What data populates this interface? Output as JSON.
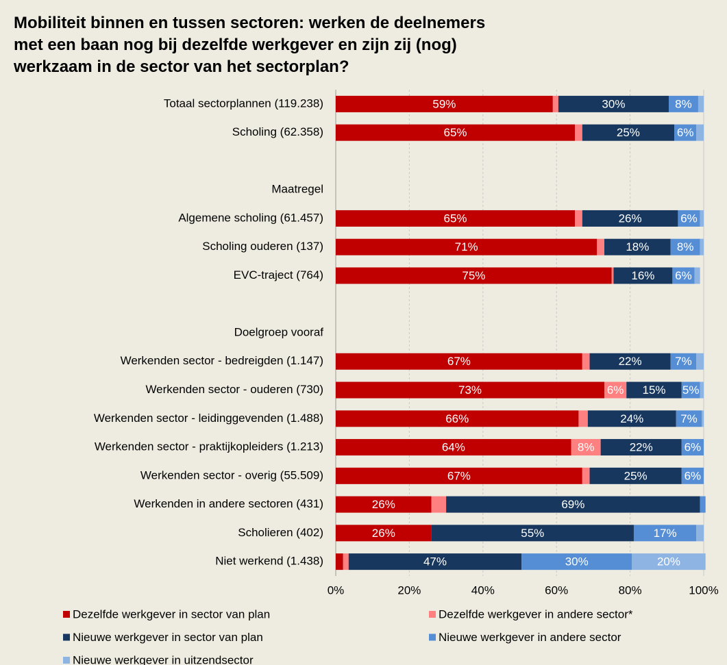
{
  "chart_data": {
    "type": "stacked_bar_horizontal",
    "title": "Mobiliteit binnen en tussen sectoren: werken de deelnemers met een baan nog bij dezelfde werkgever en zijn zij (nog) werkzaam in de sector van het sectorplan?",
    "categories": [
      "Totaal sectorplannen (119.238)",
      "Scholing (62.358)",
      null,
      "Maatregel",
      "Algemene scholing (61.457)",
      "Scholing ouderen (137)",
      "EVC-traject (764)",
      null,
      "Doelgroep vooraf",
      "Werkenden sector - bedreigden (1.147)",
      "Werkenden sector - ouderen (730)",
      "Werkenden sector - leidinggevenden (1.488)",
      "Werkenden sector - praktijkopleiders (1.213)",
      "Werkenden sector - overig (55.509)",
      "Werkenden in andere sectoren (431)",
      "Scholieren (402)",
      "Niet werkend (1.438)"
    ],
    "series": [
      {
        "name": "Dezelfde werkgever in sector van plan",
        "color": "#c00000",
        "values": [
          59,
          65,
          null,
          null,
          65,
          71,
          75,
          null,
          null,
          67,
          73,
          66,
          64,
          67,
          26,
          26,
          2
        ],
        "value_labels": [
          "59%",
          "65%",
          null,
          null,
          "65%",
          "71%",
          "75%",
          null,
          null,
          "67%",
          "73%",
          "66%",
          "64%",
          "67%",
          "26%",
          "26%",
          null
        ]
      },
      {
        "name": "Dezelfde werkgever in andere sector*",
        "color": "#ff8080",
        "values": [
          1.5,
          2,
          null,
          null,
          2,
          2,
          0.5,
          null,
          null,
          2,
          6,
          2.5,
          8,
          2,
          4,
          0,
          1.5
        ],
        "value_labels": [
          null,
          null,
          null,
          null,
          null,
          null,
          null,
          null,
          null,
          null,
          "6%",
          null,
          "8%",
          null,
          null,
          null,
          null
        ]
      },
      {
        "name": "Nieuwe werkgever in sector van plan",
        "color": "#17375e",
        "values": [
          30,
          25,
          null,
          null,
          26,
          18,
          16,
          null,
          null,
          22,
          15,
          24,
          22,
          25,
          69,
          55,
          47
        ],
        "value_labels": [
          "30%",
          "25%",
          null,
          null,
          "26%",
          "18%",
          "16%",
          null,
          null,
          "22%",
          "15%",
          "24%",
          "22%",
          "25%",
          "69%",
          "55%",
          "47%"
        ]
      },
      {
        "name": "Nieuwe werkgever in andere sector",
        "color": "#558ed5",
        "values": [
          8,
          6,
          null,
          null,
          6,
          8,
          6,
          null,
          null,
          7,
          5,
          7,
          6,
          6,
          1.5,
          17,
          30
        ],
        "value_labels": [
          "8%",
          "6%",
          null,
          null,
          "6%",
          "8%",
          "6%",
          null,
          null,
          "7%",
          "5%",
          "7%",
          "6%",
          "6%",
          null,
          "17%",
          "30%"
        ]
      },
      {
        "name": "Nieuwe werkgever in uitzendsector",
        "color": "#8eb4e3",
        "values": [
          1.5,
          2,
          null,
          null,
          1,
          1,
          1.5,
          null,
          null,
          2,
          1,
          0.5,
          0,
          0,
          0,
          2,
          20
        ],
        "value_labels": [
          null,
          null,
          null,
          null,
          null,
          null,
          null,
          null,
          null,
          null,
          null,
          null,
          null,
          null,
          null,
          null,
          "20%"
        ]
      }
    ],
    "xlim": [
      0,
      100
    ],
    "xticks": [
      {
        "value": 0,
        "label": "0%"
      },
      {
        "value": 20,
        "label": "20%"
      },
      {
        "value": 40,
        "label": "40%"
      },
      {
        "value": 60,
        "label": "60%"
      },
      {
        "value": 80,
        "label": "80%"
      },
      {
        "value": 100,
        "label": "100%"
      }
    ],
    "grid": true
  }
}
